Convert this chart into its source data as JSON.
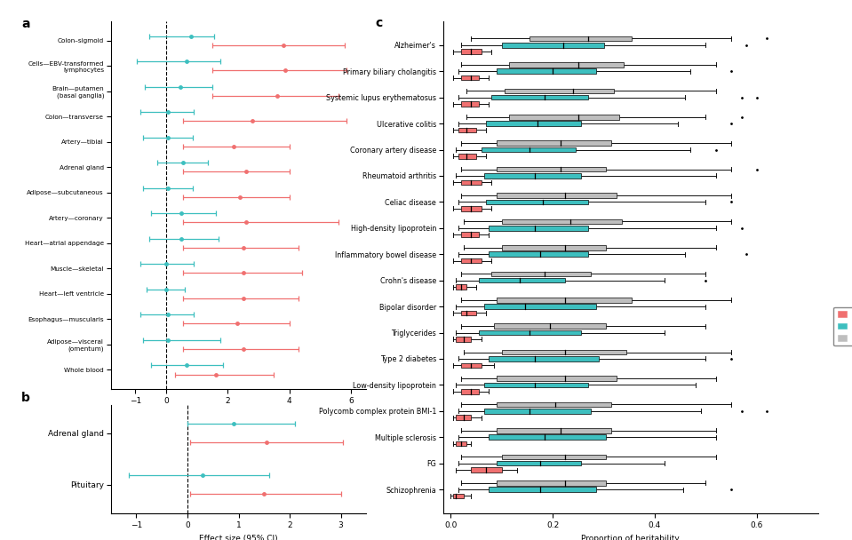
{
  "panel_a": {
    "title": "a",
    "xlabel": "Effect size (95% CI)",
    "xlim": [
      -1.8,
      6.5
    ],
    "xticks": [
      -1,
      0,
      2,
      4,
      6
    ],
    "tissues": [
      "Colon–sigmoid",
      "Cells—EBV-transformed\nlymphocytes",
      "Brain—putamen\n(basal ganglia)",
      "Colon—transverse",
      "Artery—tibial",
      "Adrenal gland",
      "Adipose—subcutaneous",
      "Artery—coronary",
      "Heart—atrial appendage",
      "Muscle—skeletal",
      "Heart—left ventricle",
      "Esophagus—muscularis",
      "Adipose—visceral\n(omentum)",
      "Whole blood"
    ],
    "eqtl_centers": [
      0.8,
      0.65,
      0.45,
      0.05,
      0.05,
      0.55,
      0.05,
      0.5,
      0.5,
      0.0,
      0.0,
      0.05,
      0.05,
      0.65
    ],
    "eqtl_lo": [
      -0.55,
      -0.95,
      -0.7,
      -0.85,
      -0.75,
      -0.3,
      -0.75,
      -0.5,
      -0.55,
      -0.85,
      -0.65,
      -0.85,
      -0.75,
      -0.5
    ],
    "eqtl_hi": [
      1.55,
      1.75,
      1.5,
      0.9,
      0.85,
      1.35,
      0.85,
      1.6,
      1.7,
      0.9,
      0.6,
      0.9,
      1.75,
      1.85
    ],
    "aqtl_centers": [
      3.8,
      3.85,
      3.6,
      2.8,
      2.2,
      2.6,
      2.4,
      2.6,
      2.5,
      2.5,
      2.5,
      2.3,
      2.5,
      1.6
    ],
    "aqtl_lo": [
      1.5,
      1.5,
      1.5,
      0.55,
      0.55,
      0.55,
      0.55,
      0.55,
      0.55,
      0.55,
      0.55,
      0.55,
      0.55,
      0.3
    ],
    "aqtl_hi": [
      5.8,
      5.85,
      5.6,
      5.85,
      4.0,
      4.0,
      4.0,
      5.6,
      4.3,
      4.4,
      4.3,
      4.0,
      4.3,
      3.5
    ],
    "eqtl_color": "#3DBFBF",
    "aqtl_color": "#F07070"
  },
  "panel_b": {
    "title": "b",
    "xlabel": "Effect size (95% CI)",
    "xlim": [
      -1.5,
      3.5
    ],
    "xticks": [
      -1,
      0,
      1,
      2,
      3
    ],
    "tissues": [
      "Adrenal gland",
      "Pituitary"
    ],
    "eqtl_centers": [
      0.9,
      0.3
    ],
    "eqtl_lo": [
      0.0,
      -1.15
    ],
    "eqtl_hi": [
      2.1,
      1.6
    ],
    "aqtl_centers": [
      1.55,
      1.5
    ],
    "aqtl_lo": [
      0.05,
      0.05
    ],
    "aqtl_hi": [
      3.05,
      3.0
    ],
    "eqtl_color": "#3DBFBF",
    "aqtl_color": "#F07070"
  },
  "panel_c": {
    "title": "c",
    "xlabel": "Proportion of heritability",
    "xlim": [
      -0.015,
      0.72
    ],
    "xticks": [
      0.0,
      0.2,
      0.4,
      0.6
    ],
    "diseases": [
      "Alzheimer's",
      "Primary biliary cholangitis",
      "Systemic lupus erythematosus",
      "Ulcerative colitis",
      "Coronary artery disease",
      "Rheumatoid arthritis",
      "Celiac disease",
      "High-density lipoprotein",
      "Inflammatory bowel disease",
      "Crohn's disease",
      "Bipolar disorder",
      "Triglycerides",
      "Type 2 diabetes",
      "Low-density lipoprotein",
      "Polycomb complex protein BMI-1",
      "Multiple sclerosis",
      "FG",
      "Schizophrenia"
    ],
    "aqtl_q1": [
      0.02,
      0.02,
      0.02,
      0.015,
      0.015,
      0.02,
      0.02,
      0.02,
      0.02,
      0.01,
      0.02,
      0.01,
      0.02,
      0.02,
      0.01,
      0.01,
      0.04,
      0.005
    ],
    "aqtl_med": [
      0.04,
      0.04,
      0.04,
      0.03,
      0.03,
      0.04,
      0.04,
      0.04,
      0.04,
      0.02,
      0.03,
      0.025,
      0.04,
      0.04,
      0.025,
      0.02,
      0.07,
      0.01
    ],
    "aqtl_q3": [
      0.06,
      0.055,
      0.055,
      0.05,
      0.05,
      0.06,
      0.06,
      0.055,
      0.06,
      0.03,
      0.05,
      0.04,
      0.06,
      0.055,
      0.04,
      0.03,
      0.1,
      0.025
    ],
    "aqtl_whislo": [
      0.005,
      0.005,
      0.005,
      0.005,
      0.005,
      0.005,
      0.005,
      0.005,
      0.005,
      0.005,
      0.005,
      0.005,
      0.005,
      0.005,
      0.005,
      0.005,
      0.01,
      0.0
    ],
    "aqtl_whishi": [
      0.08,
      0.075,
      0.075,
      0.07,
      0.07,
      0.08,
      0.08,
      0.075,
      0.08,
      0.05,
      0.07,
      0.06,
      0.085,
      0.075,
      0.06,
      0.04,
      0.13,
      0.04
    ],
    "eqtl_q1": [
      0.1,
      0.09,
      0.08,
      0.07,
      0.06,
      0.065,
      0.07,
      0.075,
      0.075,
      0.055,
      0.065,
      0.055,
      0.075,
      0.065,
      0.065,
      0.075,
      0.09,
      0.075
    ],
    "eqtl_med": [
      0.22,
      0.2,
      0.185,
      0.17,
      0.155,
      0.165,
      0.18,
      0.165,
      0.175,
      0.135,
      0.145,
      0.155,
      0.165,
      0.165,
      0.155,
      0.185,
      0.175,
      0.175
    ],
    "eqtl_q3": [
      0.3,
      0.285,
      0.27,
      0.255,
      0.245,
      0.255,
      0.27,
      0.27,
      0.27,
      0.225,
      0.285,
      0.255,
      0.29,
      0.27,
      0.275,
      0.305,
      0.255,
      0.285
    ],
    "eqtl_whislo": [
      0.02,
      0.015,
      0.015,
      0.015,
      0.01,
      0.01,
      0.015,
      0.015,
      0.015,
      0.01,
      0.01,
      0.01,
      0.015,
      0.01,
      0.015,
      0.015,
      0.015,
      0.015
    ],
    "eqtl_whishi": [
      0.5,
      0.47,
      0.46,
      0.445,
      0.47,
      0.52,
      0.5,
      0.52,
      0.46,
      0.42,
      0.5,
      0.42,
      0.5,
      0.48,
      0.49,
      0.52,
      0.42,
      0.455
    ],
    "eqtl_fliers": [
      [
        0.58
      ],
      [
        0.55
      ],
      [
        0.57,
        0.6
      ],
      [
        0.55
      ],
      [
        0.52
      ],
      [],
      [
        0.55
      ],
      [
        0.57
      ],
      [
        0.58
      ],
      [
        0.5
      ],
      [],
      [],
      [
        0.55
      ],
      [],
      [
        0.57,
        0.62
      ],
      [],
      [],
      [
        0.55
      ]
    ],
    "sqtl_q1": [
      0.155,
      0.115,
      0.105,
      0.115,
      0.09,
      0.09,
      0.09,
      0.1,
      0.1,
      0.08,
      0.09,
      0.085,
      0.1,
      0.09,
      0.09,
      0.09,
      0.1,
      0.09
    ],
    "sqtl_med": [
      0.27,
      0.25,
      0.24,
      0.25,
      0.215,
      0.215,
      0.225,
      0.235,
      0.225,
      0.185,
      0.225,
      0.195,
      0.225,
      0.225,
      0.205,
      0.215,
      0.225,
      0.225
    ],
    "sqtl_q3": [
      0.355,
      0.34,
      0.32,
      0.33,
      0.315,
      0.305,
      0.325,
      0.335,
      0.305,
      0.275,
      0.355,
      0.305,
      0.345,
      0.325,
      0.315,
      0.315,
      0.305,
      0.305
    ],
    "sqtl_whislo": [
      0.04,
      0.02,
      0.03,
      0.03,
      0.02,
      0.02,
      0.02,
      0.025,
      0.025,
      0.02,
      0.02,
      0.02,
      0.025,
      0.02,
      0.02,
      0.02,
      0.02,
      0.02
    ],
    "sqtl_whishi": [
      0.55,
      0.52,
      0.52,
      0.5,
      0.55,
      0.55,
      0.55,
      0.55,
      0.52,
      0.5,
      0.55,
      0.5,
      0.55,
      0.52,
      0.55,
      0.52,
      0.52,
      0.5
    ],
    "sqtl_fliers": [
      [
        0.62
      ],
      [],
      [],
      [
        0.57
      ],
      [],
      [
        0.6
      ],
      [],
      [],
      [],
      [],
      [],
      [],
      [],
      [],
      [],
      [],
      [],
      []
    ],
    "aqtl_color": "#F07070",
    "eqtl_color": "#3DBFBF",
    "sqtl_color": "#BEBEBE"
  }
}
